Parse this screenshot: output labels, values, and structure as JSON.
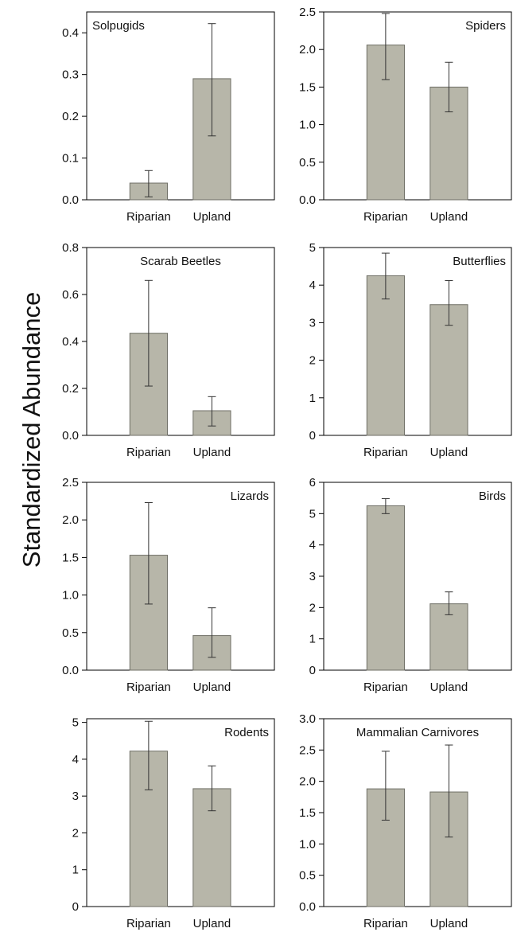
{
  "figure": {
    "ylabel": "Standardized Abundance",
    "colors": {
      "bar_fill": "#b7b6a9",
      "bar_stroke": "#6f6f66",
      "error_bar": "#333333",
      "axis": "#000000"
    }
  },
  "chart_data": [
    {
      "type": "bar",
      "title": "Solpugids",
      "legend_position": "top-left",
      "categories": [
        "Riparian",
        "Upland"
      ],
      "values": [
        0.04,
        0.29
      ],
      "error_low": [
        0.007,
        0.153
      ],
      "error_high": [
        0.07,
        0.422
      ],
      "ylim": [
        0,
        0.45
      ],
      "yticks": [
        "0.0",
        "0.1",
        "0.2",
        "0.3",
        "0.4"
      ],
      "grid": false
    },
    {
      "type": "bar",
      "title": "Spiders",
      "legend_position": "top-right",
      "categories": [
        "Riparian",
        "Upland"
      ],
      "values": [
        2.06,
        1.5
      ],
      "error_low": [
        1.6,
        1.17
      ],
      "error_high": [
        2.48,
        1.83
      ],
      "ylim": [
        0,
        2.5
      ],
      "yticks": [
        "0.0",
        "0.5",
        "1.0",
        "1.5",
        "2.0",
        "2.5"
      ],
      "grid": false
    },
    {
      "type": "bar",
      "title": "Scarab Beetles",
      "legend_position": "top-center",
      "categories": [
        "Riparian",
        "Upland"
      ],
      "values": [
        0.435,
        0.105
      ],
      "error_low": [
        0.21,
        0.04
      ],
      "error_high": [
        0.66,
        0.165
      ],
      "ylim": [
        0,
        0.8
      ],
      "yticks": [
        "0.0",
        "0.2",
        "0.4",
        "0.6",
        "0.8"
      ],
      "grid": false
    },
    {
      "type": "bar",
      "title": "Butterflies",
      "legend_position": "top-right",
      "categories": [
        "Riparian",
        "Upland"
      ],
      "values": [
        4.25,
        3.48
      ],
      "error_low": [
        3.63,
        2.93
      ],
      "error_high": [
        4.85,
        4.12
      ],
      "ylim": [
        0,
        5
      ],
      "yticks": [
        "0",
        "1",
        "2",
        "3",
        "4",
        "5"
      ],
      "grid": false
    },
    {
      "type": "bar",
      "title": "Lizards",
      "legend_position": "top-right",
      "categories": [
        "Riparian",
        "Upland"
      ],
      "values": [
        1.53,
        0.46
      ],
      "error_low": [
        0.88,
        0.17
      ],
      "error_high": [
        2.23,
        0.83
      ],
      "ylim": [
        0,
        2.5
      ],
      "yticks": [
        "0.0",
        "0.5",
        "1.0",
        "1.5",
        "2.0",
        "2.5"
      ],
      "grid": false
    },
    {
      "type": "bar",
      "title": "Birds",
      "legend_position": "top-right",
      "categories": [
        "Riparian",
        "Upland"
      ],
      "values": [
        5.25,
        2.12
      ],
      "error_low": [
        5.0,
        1.77
      ],
      "error_high": [
        5.48,
        2.5
      ],
      "ylim": [
        0,
        6
      ],
      "yticks": [
        "0",
        "1",
        "2",
        "3",
        "4",
        "5",
        "6"
      ],
      "grid": false
    },
    {
      "type": "bar",
      "title": "Rodents",
      "legend_position": "top-right",
      "categories": [
        "Riparian",
        "Upland"
      ],
      "values": [
        4.22,
        3.2
      ],
      "error_low": [
        3.17,
        2.6
      ],
      "error_high": [
        5.03,
        3.82
      ],
      "ylim": [
        0,
        5.1
      ],
      "yticks": [
        "0",
        "1",
        "2",
        "3",
        "4",
        "5"
      ],
      "grid": false
    },
    {
      "type": "bar",
      "title": "Mammalian Carnivores",
      "legend_position": "top-center",
      "categories": [
        "Riparian",
        "Upland"
      ],
      "values": [
        1.88,
        1.83
      ],
      "error_low": [
        1.38,
        1.11
      ],
      "error_high": [
        2.48,
        2.58
      ],
      "ylim": [
        0,
        3.0
      ],
      "yticks": [
        "0.0",
        "0.5",
        "1.0",
        "1.5",
        "2.0",
        "2.5",
        "3.0"
      ],
      "grid": false
    }
  ]
}
